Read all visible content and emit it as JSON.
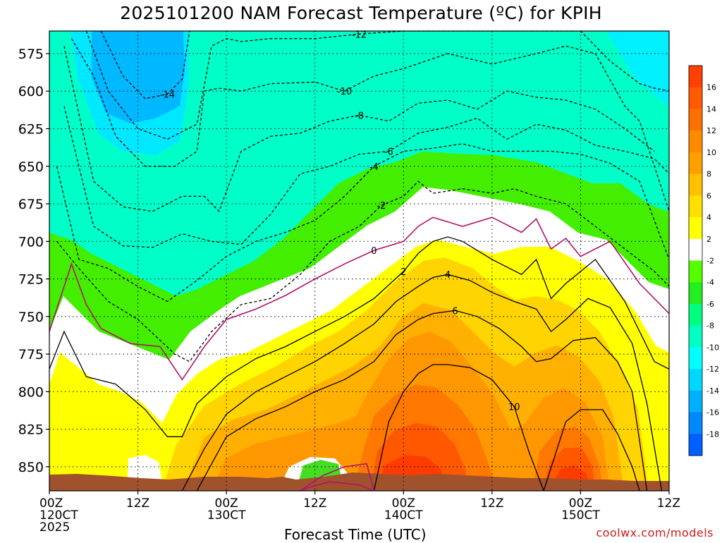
{
  "chart_data": {
    "type": "heatmap",
    "title": "2025101200 NAM Forecast Temperature (ºC) for KPIH",
    "xlabel": "Forecast Time (UTC)",
    "ylabel": "",
    "credit": "coolwx.com/models",
    "xlim": [
      0,
      84
    ],
    "ylim": [
      560,
      866
    ],
    "x_ticks": [
      {
        "hour": 0,
        "lines": [
          "00Z",
          "120CT",
          "2025"
        ]
      },
      {
        "hour": 12,
        "lines": [
          "12Z"
        ]
      },
      {
        "hour": 24,
        "lines": [
          "00Z",
          "130CT"
        ]
      },
      {
        "hour": 36,
        "lines": [
          "12Z"
        ]
      },
      {
        "hour": 48,
        "lines": [
          "00Z",
          "140CT"
        ]
      },
      {
        "hour": 60,
        "lines": [
          "12Z"
        ]
      },
      {
        "hour": 72,
        "lines": [
          "00Z",
          "150CT"
        ]
      },
      {
        "hour": 84,
        "lines": [
          "12Z"
        ]
      }
    ],
    "y_ticks": [
      575,
      600,
      625,
      650,
      675,
      700,
      725,
      750,
      775,
      800,
      825,
      850
    ],
    "grid": true,
    "colorbar": {
      "labels": [
        "16",
        "14",
        "12",
        "10",
        "8",
        "6",
        "4",
        "2",
        "-2",
        "-4",
        "-6",
        "-8",
        "-10",
        "-12",
        "-14",
        "-16",
        "-18"
      ],
      "colors": [
        "#ff4000",
        "#ff5a00",
        "#ff7000",
        "#ff8a00",
        "#ffa000",
        "#ffc000",
        "#ffe000",
        "#ffff00",
        "#ffffff",
        "#55ff00",
        "#22ee22",
        "#00ff80",
        "#00ffc0",
        "#00ffff",
        "#00d8ff",
        "#00b0ff",
        "#0088ff",
        "#0060ff"
      ]
    },
    "series": [
      {
        "name": "-14 isotherm",
        "label": "-14",
        "x": [
          7,
          10,
          13,
          16,
          18,
          19
        ],
        "y": [
          560,
          590,
          605,
          602,
          592,
          560
        ]
      },
      {
        "name": "-12 isotherm",
        "label": "-12",
        "x": [
          5,
          8,
          12,
          16,
          20,
          22,
          24,
          26,
          30,
          36,
          42,
          48,
          54,
          60,
          66,
          72,
          76,
          80,
          82,
          84
        ],
        "y": [
          560,
          600,
          625,
          632,
          622,
          570,
          565,
          567,
          565,
          565,
          562,
          560,
          560,
          560,
          560,
          560,
          580,
          595,
          598,
          600
        ]
      },
      {
        "name": "-10 isotherm",
        "label": "-10",
        "x": [
          3,
          6,
          9,
          13,
          17,
          20,
          21,
          23,
          26,
          30,
          36,
          40,
          44,
          48,
          54,
          60,
          66,
          70,
          74,
          78,
          80,
          84
        ],
        "y": [
          565,
          590,
          630,
          650,
          650,
          640,
          600,
          598,
          600,
          595,
          594,
          600,
          590,
          585,
          575,
          582,
          575,
          570,
          575,
          610,
          620,
          680
        ]
      },
      {
        "name": "-8 isotherm",
        "label": "-8",
        "x": [
          2,
          6,
          10,
          14,
          18,
          21,
          23,
          26,
          30,
          34,
          38,
          42,
          46,
          50,
          54,
          58,
          62,
          66,
          70,
          74,
          78,
          82
        ],
        "y": [
          570,
          660,
          677,
          680,
          670,
          670,
          680,
          640,
          630,
          628,
          620,
          616,
          620,
          608,
          606,
          612,
          600,
          604,
          606,
          612,
          625,
          640
        ]
      },
      {
        "name": "-6 isotherm",
        "label": "-6",
        "x": [
          2,
          6,
          10,
          14,
          18,
          22,
          26,
          30,
          34,
          38,
          42,
          46,
          50,
          54,
          58,
          62,
          66,
          70,
          74,
          78,
          82,
          84
        ],
        "y": [
          610,
          690,
          703,
          704,
          695,
          700,
          702,
          682,
          655,
          650,
          642,
          640,
          628,
          624,
          618,
          632,
          622,
          626,
          636,
          640,
          645,
          655
        ]
      },
      {
        "name": "-4 isotherm",
        "label": "-4",
        "x": [
          1,
          4,
          8,
          12,
          16,
          20,
          24,
          28,
          32,
          36,
          40,
          44,
          48,
          52,
          56,
          60,
          64,
          68,
          72,
          76,
          80,
          84
        ],
        "y": [
          650,
          712,
          718,
          730,
          740,
          726,
          710,
          700,
          694,
          686,
          670,
          650,
          640,
          638,
          635,
          640,
          640,
          640,
          642,
          648,
          660,
          712
        ]
      },
      {
        "name": "-2 isotherm",
        "label": "-2",
        "x": [
          1,
          4,
          8,
          12,
          17,
          19,
          22,
          26,
          30,
          34,
          38,
          42,
          45,
          48,
          50,
          52,
          56,
          60,
          63,
          66,
          70,
          74,
          78,
          82,
          84
        ],
        "y": [
          700,
          718,
          740,
          752,
          775,
          780,
          760,
          742,
          738,
          722,
          700,
          690,
          676,
          670,
          660,
          668,
          665,
          668,
          665,
          670,
          675,
          690,
          705,
          720,
          730
        ]
      },
      {
        "name": "0 isotherm",
        "label": "0",
        "x": [
          0,
          3,
          5,
          7,
          11,
          15,
          18,
          21,
          24,
          28,
          32,
          36,
          40,
          44,
          48,
          50,
          52,
          56,
          60,
          64,
          66,
          68,
          70,
          72,
          76,
          80,
          84
        ],
        "y": [
          760,
          715,
          742,
          758,
          768,
          770,
          792,
          770,
          752,
          745,
          736,
          725,
          715,
          706,
          700,
          690,
          684,
          690,
          684,
          694,
          685,
          705,
          698,
          710,
          700,
          728,
          748
        ]
      },
      {
        "name": "2 isotherm",
        "label": "2",
        "x": [
          0,
          2,
          5,
          9,
          13,
          16,
          18,
          20,
          24,
          28,
          32,
          36,
          40,
          44,
          48,
          50,
          52,
          54,
          56,
          60,
          64,
          66,
          68,
          70,
          74,
          78,
          82,
          84
        ],
        "y": [
          785,
          760,
          790,
          795,
          812,
          830,
          830,
          808,
          790,
          778,
          770,
          760,
          750,
          738,
          720,
          708,
          700,
          697,
          700,
          712,
          722,
          712,
          738,
          728,
          712,
          740,
          780,
          785
        ]
      },
      {
        "name": "4 isotherm",
        "label": "4",
        "x": [
          18,
          21,
          24,
          28,
          32,
          36,
          40,
          44,
          47,
          50,
          52,
          54,
          57,
          60,
          63,
          66,
          68,
          70,
          73,
          76,
          79,
          81,
          83
        ],
        "y": [
          866,
          838,
          815,
          800,
          790,
          780,
          768,
          755,
          740,
          730,
          724,
          722,
          726,
          734,
          740,
          745,
          760,
          752,
          738,
          744,
          768,
          808,
          866
        ]
      },
      {
        "name": "6 isotherm",
        "label": "6",
        "x": [
          20,
          24,
          28,
          32,
          36,
          40,
          44,
          47,
          50,
          52,
          55,
          58,
          61,
          64,
          66,
          68,
          71,
          74,
          77,
          79,
          81
        ],
        "y": [
          866,
          830,
          818,
          810,
          800,
          792,
          780,
          762,
          752,
          748,
          746,
          750,
          758,
          770,
          780,
          778,
          766,
          764,
          780,
          800,
          866
        ]
      },
      {
        "name": "10 isotherm",
        "label": "10",
        "x": [
          44,
          46,
          48,
          50,
          52,
          54,
          57,
          60,
          63,
          65,
          67,
          70,
          72,
          75,
          77,
          79,
          80
        ],
        "y": [
          866,
          820,
          800,
          788,
          782,
          782,
          784,
          792,
          810,
          840,
          866,
          820,
          812,
          812,
          828,
          850,
          866
        ]
      },
      {
        "name": "0 isotherm low",
        "label": "",
        "x": [
          34,
          37,
          40,
          43,
          44,
          42,
          38,
          35,
          34
        ],
        "y": [
          866,
          856,
          850,
          848,
          866,
          862,
          860,
          864,
          866
        ]
      }
    ]
  }
}
